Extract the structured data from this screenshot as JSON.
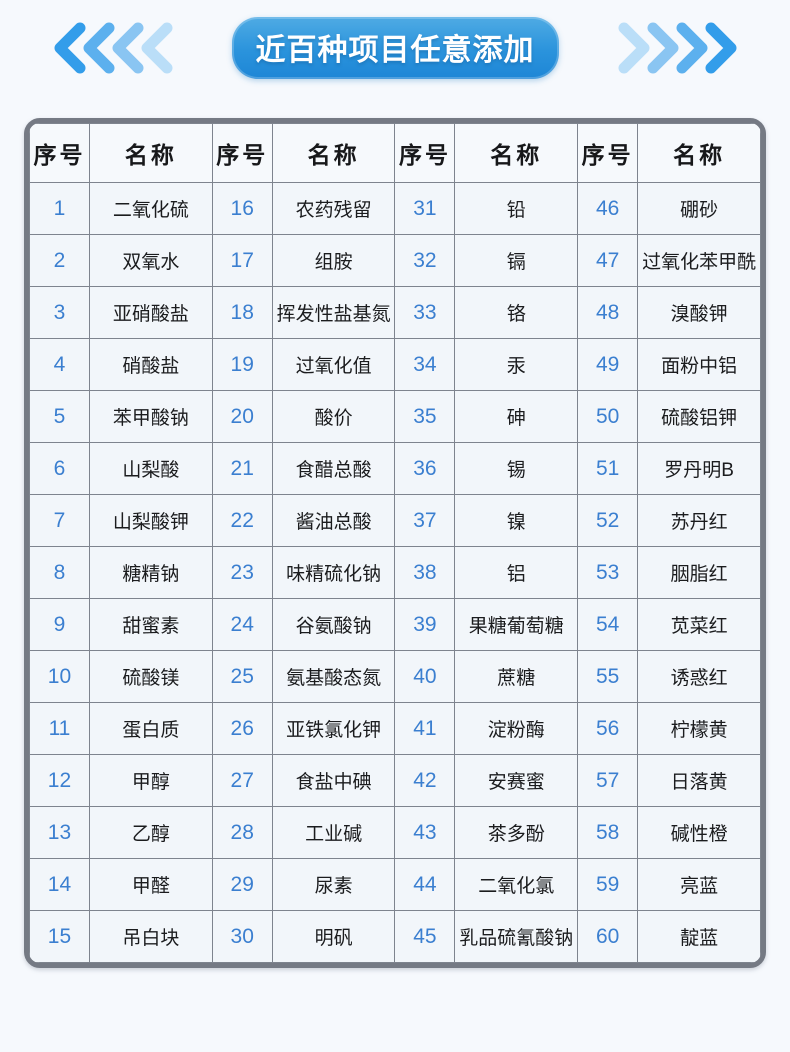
{
  "banner": {
    "title": "近百种项目任意添加",
    "chevron_colors_left": [
      "#339dea",
      "#5cb0ee",
      "#8ac5f2",
      "#badef8"
    ],
    "chevron_colors_right": [
      "#badef8",
      "#8ac5f2",
      "#5cb0ee",
      "#339dea"
    ],
    "pill_gradient_top": "#4fabe4",
    "pill_gradient_bottom": "#1e86d6"
  },
  "colors": {
    "page_bg": "#f6f9fd",
    "table_outer_border": "#757a84",
    "cell_border": "#7e848e",
    "cell_bg": "#f2f6fa",
    "serial_number_blue": "#3b7fd0",
    "text_dark": "#1b1c1e"
  },
  "table": {
    "header_no": "序号",
    "header_name": "名称",
    "columns": [
      {
        "items": [
          {
            "no": "1",
            "name": "二氧化硫"
          },
          {
            "no": "2",
            "name": "双氧水"
          },
          {
            "no": "3",
            "name": "亚硝酸盐"
          },
          {
            "no": "4",
            "name": "硝酸盐"
          },
          {
            "no": "5",
            "name": "苯甲酸钠"
          },
          {
            "no": "6",
            "name": "山梨酸"
          },
          {
            "no": "7",
            "name": "山梨酸钾"
          },
          {
            "no": "8",
            "name": "糖精钠"
          },
          {
            "no": "9",
            "name": "甜蜜素"
          },
          {
            "no": "10",
            "name": "硫酸镁"
          },
          {
            "no": "11",
            "name": "蛋白质"
          },
          {
            "no": "12",
            "name": "甲醇"
          },
          {
            "no": "13",
            "name": "乙醇"
          },
          {
            "no": "14",
            "name": "甲醛"
          },
          {
            "no": "15",
            "name": "吊白块"
          }
        ]
      },
      {
        "items": [
          {
            "no": "16",
            "name": "农药残留"
          },
          {
            "no": "17",
            "name": "组胺"
          },
          {
            "no": "18",
            "name": "挥发性盐基氮"
          },
          {
            "no": "19",
            "name": "过氧化值"
          },
          {
            "no": "20",
            "name": "酸价"
          },
          {
            "no": "21",
            "name": "食醋总酸"
          },
          {
            "no": "22",
            "name": "酱油总酸"
          },
          {
            "no": "23",
            "name": "味精硫化钠"
          },
          {
            "no": "24",
            "name": "谷氨酸钠"
          },
          {
            "no": "25",
            "name": "氨基酸态氮"
          },
          {
            "no": "26",
            "name": "亚铁氯化钾"
          },
          {
            "no": "27",
            "name": "食盐中碘"
          },
          {
            "no": "28",
            "name": "工业碱"
          },
          {
            "no": "29",
            "name": "尿素"
          },
          {
            "no": "30",
            "name": "明矾"
          }
        ]
      },
      {
        "items": [
          {
            "no": "31",
            "name": "铅"
          },
          {
            "no": "32",
            "name": "镉"
          },
          {
            "no": "33",
            "name": "铬"
          },
          {
            "no": "34",
            "name": "汞"
          },
          {
            "no": "35",
            "name": "砷"
          },
          {
            "no": "36",
            "name": "锡"
          },
          {
            "no": "37",
            "name": "镍"
          },
          {
            "no": "38",
            "name": "铝"
          },
          {
            "no": "39",
            "name": "果糖葡萄糖"
          },
          {
            "no": "40",
            "name": "蔗糖"
          },
          {
            "no": "41",
            "name": "淀粉酶"
          },
          {
            "no": "42",
            "name": "安赛蜜"
          },
          {
            "no": "43",
            "name": "茶多酚"
          },
          {
            "no": "44",
            "name": "二氧化氯"
          },
          {
            "no": "45",
            "name": "乳品硫氰酸钠"
          }
        ]
      },
      {
        "items": [
          {
            "no": "46",
            "name": "硼砂"
          },
          {
            "no": "47",
            "name": "过氧化苯甲酰"
          },
          {
            "no": "48",
            "name": "溴酸钾"
          },
          {
            "no": "49",
            "name": "面粉中铝"
          },
          {
            "no": "50",
            "name": "硫酸铝钾"
          },
          {
            "no": "51",
            "name": "罗丹明B"
          },
          {
            "no": "52",
            "name": "苏丹红"
          },
          {
            "no": "53",
            "name": "胭脂红"
          },
          {
            "no": "54",
            "name": "苋菜红"
          },
          {
            "no": "55",
            "name": "诱惑红"
          },
          {
            "no": "56",
            "name": "柠檬黄"
          },
          {
            "no": "57",
            "name": "日落黄"
          },
          {
            "no": "58",
            "name": "碱性橙"
          },
          {
            "no": "59",
            "name": "亮蓝"
          },
          {
            "no": "60",
            "name": "靛蓝"
          }
        ]
      }
    ]
  }
}
